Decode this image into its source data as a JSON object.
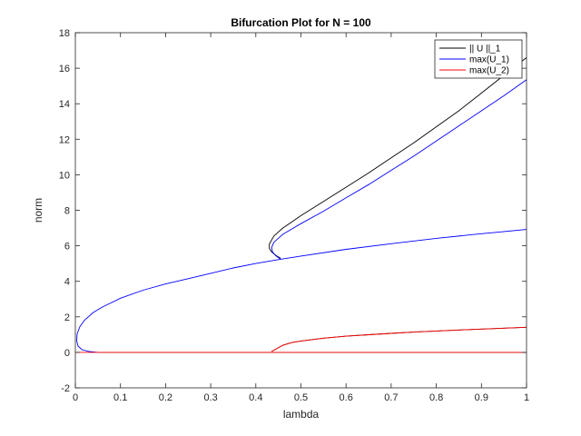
{
  "chart_data": {
    "type": "line",
    "title": "Bifurcation Plot for N = 100",
    "xlabel": "lambda",
    "ylabel": "norm",
    "xlim": [
      0,
      1
    ],
    "ylim": [
      -2,
      18
    ],
    "xticks": [
      0,
      0.1,
      0.2,
      0.3,
      0.4,
      0.5,
      0.6,
      0.7,
      0.8,
      0.9,
      1
    ],
    "xtick_labels": [
      "0",
      "0.1",
      "0.2",
      "0.3",
      "0.4",
      "0.5",
      "0.6",
      "0.7",
      "0.8",
      "0.9",
      "1"
    ],
    "yticks": [
      -2,
      0,
      2,
      4,
      6,
      8,
      10,
      12,
      14,
      16,
      18
    ],
    "ytick_labels": [
      "-2",
      "0",
      "2",
      "4",
      "6",
      "8",
      "10",
      "12",
      "14",
      "16",
      "18"
    ],
    "grid": false,
    "legend_position": "top-right",
    "series": [
      {
        "name": "|| U ||_1",
        "color": "#000000",
        "segments": [
          {
            "x": [
              0.05,
              0.2,
              0.4,
              0.6,
              0.8,
              1.0
            ],
            "y": [
              0,
              0,
              0,
              0,
              0,
              0
            ]
          },
          {
            "x": [
              0.435,
              0.46,
              0.48,
              0.5,
              0.55,
              0.6,
              0.65,
              0.7,
              0.75,
              0.8,
              0.85,
              0.9,
              0.95,
              1.0
            ],
            "y": [
              0.05,
              0.4,
              0.55,
              0.64,
              0.8,
              0.91,
              0.99,
              1.07,
              1.14,
              1.2,
              1.26,
              1.31,
              1.36,
              1.41
            ]
          },
          {
            "x": [
              0.455,
              0.445,
              0.435,
              0.43,
              0.43,
              0.44,
              0.46,
              0.48,
              0.5,
              0.55,
              0.6,
              0.65,
              0.7,
              0.75,
              0.8,
              0.85,
              0.9,
              0.95,
              1.0
            ],
            "y": [
              5.3,
              5.45,
              5.65,
              5.85,
              6.1,
              6.55,
              7.0,
              7.35,
              7.7,
              8.5,
              9.3,
              10.1,
              10.95,
              11.8,
              12.7,
              13.6,
              14.6,
              15.6,
              16.6
            ]
          }
        ]
      },
      {
        "name": "max(U_1)",
        "color": "#0000ff",
        "segments": [
          {
            "x": [
              0.05,
              0.03,
              0.015,
              0.006,
              0.003,
              0.004,
              0.01,
              0.02,
              0.04,
              0.06,
              0.1,
              0.15,
              0.2,
              0.25,
              0.3,
              0.35,
              0.4,
              0.45,
              0.5,
              0.6,
              0.7,
              0.8,
              0.9,
              1.0
            ],
            "y": [
              0.0,
              0.05,
              0.15,
              0.35,
              0.65,
              1.05,
              1.45,
              1.8,
              2.25,
              2.55,
              3.05,
              3.5,
              3.85,
              4.15,
              4.45,
              4.75,
              5.0,
              5.22,
              5.42,
              5.8,
              6.12,
              6.42,
              6.68,
              6.92
            ]
          },
          {
            "x": [
              0.455,
              0.445,
              0.437,
              0.435,
              0.44,
              0.46,
              0.48,
              0.5,
              0.55,
              0.6,
              0.65,
              0.7,
              0.75,
              0.8,
              0.85,
              0.9,
              0.95,
              1.0
            ],
            "y": [
              5.25,
              5.42,
              5.65,
              5.9,
              6.2,
              6.65,
              6.95,
              7.25,
              7.95,
              8.7,
              9.45,
              10.25,
              11.05,
              11.9,
              12.75,
              13.6,
              14.45,
              15.35
            ]
          }
        ]
      },
      {
        "name": "max(U_2)",
        "color": "#ff0000",
        "segments": [
          {
            "x": [
              0,
              0.2,
              0.4,
              0.6,
              0.8,
              1.0
            ],
            "y": [
              0,
              0,
              0,
              0,
              0,
              0
            ]
          },
          {
            "x": [
              0.435,
              0.46,
              0.48,
              0.5,
              0.55,
              0.6,
              0.65,
              0.7,
              0.75,
              0.8,
              0.85,
              0.9,
              0.95,
              1.0
            ],
            "y": [
              0.05,
              0.4,
              0.55,
              0.64,
              0.8,
              0.91,
              0.99,
              1.07,
              1.14,
              1.2,
              1.26,
              1.31,
              1.36,
              1.41
            ]
          }
        ]
      }
    ]
  }
}
